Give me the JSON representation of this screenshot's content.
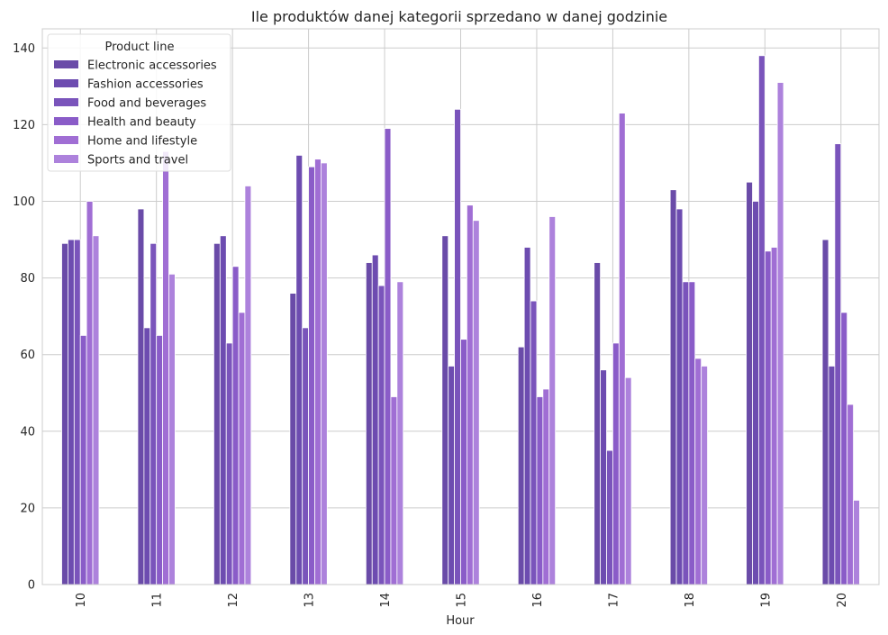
{
  "chart_data": {
    "type": "bar",
    "title": "Ile produktów danej kategorii sprzedano w danej godzinie",
    "xlabel": "Hour",
    "ylabel": "",
    "categories": [
      "10",
      "11",
      "12",
      "13",
      "14",
      "15",
      "16",
      "17",
      "18",
      "19",
      "20"
    ],
    "ylim": [
      0,
      145
    ],
    "yticks": [
      0,
      20,
      40,
      60,
      80,
      100,
      120,
      140
    ],
    "grid": true,
    "legend_title": "Product line",
    "legend_position": "top-left",
    "series": [
      {
        "name": "Electronic accessories",
        "color": "#6a4ba8",
        "values": [
          89,
          98,
          89,
          76,
          84,
          91,
          62,
          84,
          103,
          105,
          90
        ]
      },
      {
        "name": "Fashion accessories",
        "color": "#6d4cb0",
        "values": [
          90,
          67,
          91,
          112,
          86,
          57,
          88,
          56,
          98,
          100,
          57
        ]
      },
      {
        "name": "Food and beverages",
        "color": "#7a54bb",
        "values": [
          90,
          89,
          63,
          67,
          78,
          124,
          74,
          35,
          79,
          138,
          115
        ]
      },
      {
        "name": "Health and beauty",
        "color": "#8a5cc8",
        "values": [
          65,
          65,
          83,
          109,
          119,
          64,
          49,
          63,
          79,
          87,
          71
        ]
      },
      {
        "name": "Home and lifestyle",
        "color": "#a06ed4",
        "values": [
          100,
          113,
          71,
          111,
          49,
          99,
          51,
          123,
          59,
          88,
          47
        ]
      },
      {
        "name": "Sports and travel",
        "color": "#ad82dc",
        "values": [
          91,
          81,
          104,
          110,
          79,
          95,
          96,
          54,
          57,
          131,
          22
        ]
      }
    ]
  }
}
